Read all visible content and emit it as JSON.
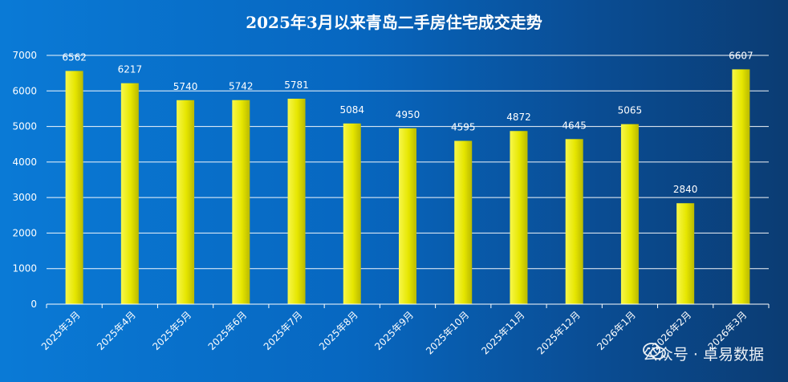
{
  "chart_data": {
    "type": "bar",
    "title": "2025年3月以来青岛二手房住宅成交走势",
    "categories": [
      "2025年3月",
      "2025年4月",
      "2025年5月",
      "2025年6月",
      "2025年7月",
      "2025年8月",
      "2025年9月",
      "2025年10月",
      "2025年11月",
      "2025年12月",
      "2026年1月",
      "2026年2月",
      "2026年3月"
    ],
    "values": [
      6562,
      6217,
      5740,
      5742,
      5781,
      5084,
      4950,
      4595,
      4872,
      4645,
      5065,
      2840,
      6607
    ],
    "ylim": [
      0,
      7000
    ],
    "yticks": [
      0,
      1000,
      2000,
      3000,
      4000,
      5000,
      6000,
      7000
    ],
    "grid": true,
    "bar_color": "#e8e800",
    "background_colors": [
      "#0a7ad6",
      "#0b3c73"
    ]
  },
  "watermark": {
    "text": "公众号 · 卓易数据",
    "icon": "wechat-icon"
  }
}
